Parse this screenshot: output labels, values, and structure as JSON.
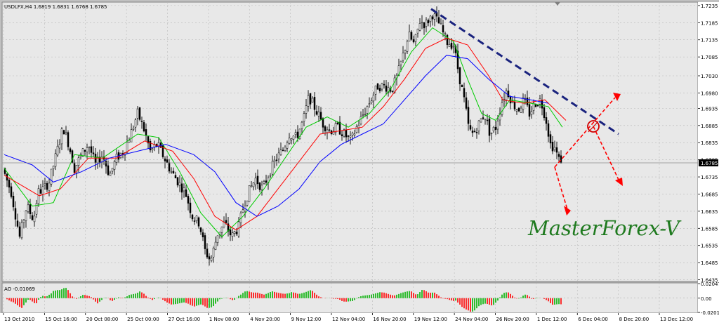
{
  "header": {
    "symbol_info": "USDLFX,H4  1.6819 1.6831 1.6768 1.6785"
  },
  "ao_label": "AO -0.01069",
  "watermark": "MasterForex-V",
  "chart_data": {
    "type": "candlestick",
    "symbol": "USDLFX",
    "timeframe": "H4",
    "ohlc_header": {
      "open": 1.6819,
      "high": 1.6831,
      "low": 1.6768,
      "close": 1.6785
    },
    "current_price": "1.6785",
    "ylim": [
      1.643,
      1.7245
    ],
    "y_ticks": [
      "1.7235",
      "1.7185",
      "1.7135",
      "1.7085",
      "1.7030",
      "1.6980",
      "1.6935",
      "1.6885",
      "1.6835",
      "1.6785",
      "1.6735",
      "1.6685",
      "1.6635",
      "1.6585",
      "1.6535",
      "1.6485",
      "1.6435"
    ],
    "x_ticks": [
      "13 Oct 2010",
      "15 Oct 16:00",
      "20 Oct 08:00",
      "25 Oct 00:00",
      "27 Oct 16:00",
      "1 Nov 08:00",
      "4 Nov 20:00",
      "9 Nov 12:00",
      "12 Nov 04:00",
      "16 Nov 20:00",
      "19 Nov 12:00",
      "24 Nov 04:00",
      "26 Nov 20:00",
      "1 Dec 12:00",
      "6 Dec 04:00",
      "8 Dec 20:00",
      "13 Dec 12:00"
    ],
    "price_path": [
      [
        0,
        1.676
      ],
      [
        12,
        1.669
      ],
      [
        24,
        1.656
      ],
      [
        34,
        1.665
      ],
      [
        44,
        1.661
      ],
      [
        50,
        1.669
      ],
      [
        58,
        1.67
      ],
      [
        66,
        1.672
      ],
      [
        76,
        1.68
      ],
      [
        86,
        1.688
      ],
      [
        94,
        1.683
      ],
      [
        102,
        1.676
      ],
      [
        112,
        1.68
      ],
      [
        122,
        1.683
      ],
      [
        132,
        1.677
      ],
      [
        142,
        1.68
      ],
      [
        152,
        1.674
      ],
      [
        162,
        1.679
      ],
      [
        172,
        1.681
      ],
      [
        182,
        1.686
      ],
      [
        192,
        1.692
      ],
      [
        200,
        1.688
      ],
      [
        210,
        1.681
      ],
      [
        220,
        1.683
      ],
      [
        230,
        1.679
      ],
      [
        240,
        1.675
      ],
      [
        250,
        1.672
      ],
      [
        260,
        1.669
      ],
      [
        270,
        1.662
      ],
      [
        280,
        1.66
      ],
      [
        288,
        1.652
      ],
      [
        296,
        1.649
      ],
      [
        306,
        1.657
      ],
      [
        316,
        1.66
      ],
      [
        326,
        1.656
      ],
      [
        336,
        1.659
      ],
      [
        344,
        1.666
      ],
      [
        352,
        1.67
      ],
      [
        360,
        1.673
      ],
      [
        370,
        1.67
      ],
      [
        380,
        1.675
      ],
      [
        390,
        1.679
      ],
      [
        398,
        1.681
      ],
      [
        408,
        1.686
      ],
      [
        418,
        1.685
      ],
      [
        428,
        1.69
      ],
      [
        436,
        1.697
      ],
      [
        446,
        1.693
      ],
      [
        456,
        1.689
      ],
      [
        466,
        1.687
      ],
      [
        476,
        1.688
      ],
      [
        486,
        1.686
      ],
      [
        496,
        1.684
      ],
      [
        504,
        1.688
      ],
      [
        514,
        1.692
      ],
      [
        524,
        1.696
      ],
      [
        534,
        1.7
      ],
      [
        544,
        1.7
      ],
      [
        554,
        1.699
      ],
      [
        562,
        1.703
      ],
      [
        570,
        1.709
      ],
      [
        578,
        1.715
      ],
      [
        586,
        1.712
      ],
      [
        594,
        1.719
      ],
      [
        602,
        1.718
      ],
      [
        612,
        1.721
      ],
      [
        622,
        1.718
      ],
      [
        632,
        1.713
      ],
      [
        642,
        1.712
      ],
      [
        650,
        1.703
      ],
      [
        658,
        1.695
      ],
      [
        664,
        1.687
      ],
      [
        670,
        1.686
      ],
      [
        678,
        1.689
      ],
      [
        686,
        1.692
      ],
      [
        694,
        1.686
      ],
      [
        702,
        1.688
      ],
      [
        710,
        1.695
      ],
      [
        718,
        1.699
      ],
      [
        726,
        1.695
      ],
      [
        734,
        1.693
      ],
      [
        742,
        1.696
      ],
      [
        750,
        1.692
      ],
      [
        758,
        1.695
      ],
      [
        766,
        1.696
      ],
      [
        774,
        1.69
      ],
      [
        780,
        1.683
      ],
      [
        786,
        1.682
      ],
      [
        792,
        1.6785
      ]
    ],
    "moving_averages": [
      {
        "color": "#00cc00",
        "points": [
          [
            0,
            1.676
          ],
          [
            40,
            1.665
          ],
          [
            70,
            1.666
          ],
          [
            100,
            1.68
          ],
          [
            140,
            1.679
          ],
          [
            190,
            1.686
          ],
          [
            220,
            1.685
          ],
          [
            250,
            1.675
          ],
          [
            280,
            1.663
          ],
          [
            310,
            1.656
          ],
          [
            340,
            1.662
          ],
          [
            370,
            1.67
          ],
          [
            400,
            1.679
          ],
          [
            430,
            1.688
          ],
          [
            460,
            1.691
          ],
          [
            490,
            1.688
          ],
          [
            520,
            1.692
          ],
          [
            550,
            1.699
          ],
          [
            580,
            1.71
          ],
          [
            610,
            1.717
          ],
          [
            640,
            1.713
          ],
          [
            660,
            1.702
          ],
          [
            680,
            1.692
          ],
          [
            700,
            1.69
          ],
          [
            720,
            1.696
          ],
          [
            750,
            1.695
          ],
          [
            775,
            1.694
          ],
          [
            795,
            1.688
          ]
        ]
      },
      {
        "color": "#ff0000",
        "points": [
          [
            0,
            1.674
          ],
          [
            50,
            1.668
          ],
          [
            80,
            1.67
          ],
          [
            120,
            1.679
          ],
          [
            160,
            1.679
          ],
          [
            200,
            1.684
          ],
          [
            240,
            1.681
          ],
          [
            270,
            1.673
          ],
          [
            300,
            1.662
          ],
          [
            330,
            1.658
          ],
          [
            360,
            1.662
          ],
          [
            390,
            1.67
          ],
          [
            420,
            1.678
          ],
          [
            450,
            1.686
          ],
          [
            480,
            1.687
          ],
          [
            510,
            1.688
          ],
          [
            540,
            1.694
          ],
          [
            570,
            1.702
          ],
          [
            600,
            1.711
          ],
          [
            630,
            1.714
          ],
          [
            660,
            1.712
          ],
          [
            690,
            1.703
          ],
          [
            710,
            1.696
          ],
          [
            740,
            1.695
          ],
          [
            770,
            1.696
          ],
          [
            800,
            1.69
          ]
        ]
      },
      {
        "color": "#0000ff",
        "points": [
          [
            0,
            1.68
          ],
          [
            40,
            1.677
          ],
          [
            70,
            1.672
          ],
          [
            110,
            1.675
          ],
          [
            150,
            1.679
          ],
          [
            190,
            1.681
          ],
          [
            230,
            1.683
          ],
          [
            270,
            1.68
          ],
          [
            300,
            1.675
          ],
          [
            330,
            1.666
          ],
          [
            360,
            1.662
          ],
          [
            390,
            1.665
          ],
          [
            420,
            1.67
          ],
          [
            450,
            1.678
          ],
          [
            480,
            1.683
          ],
          [
            510,
            1.686
          ],
          [
            540,
            1.689
          ],
          [
            570,
            1.696
          ],
          [
            600,
            1.703
          ],
          [
            630,
            1.709
          ],
          [
            660,
            1.708
          ],
          [
            690,
            1.702
          ],
          [
            720,
            1.697
          ],
          [
            750,
            1.696
          ],
          [
            775,
            1.695
          ]
        ]
      }
    ],
    "trendline": {
      "color": "#1a237e",
      "style": "dashed",
      "points": [
        [
          608,
          1.7225
        ],
        [
          875,
          1.686
        ]
      ]
    },
    "arrows_color": "#ff0000",
    "ao": {
      "label": "AO -0.01069",
      "ylim": [
        -0.021,
        0.0215
      ],
      "y_ticks": [
        "0.02047",
        "0.00",
        "-0.0201"
      ],
      "up_color": "#00b000",
      "down_color": "#ff0000"
    }
  }
}
